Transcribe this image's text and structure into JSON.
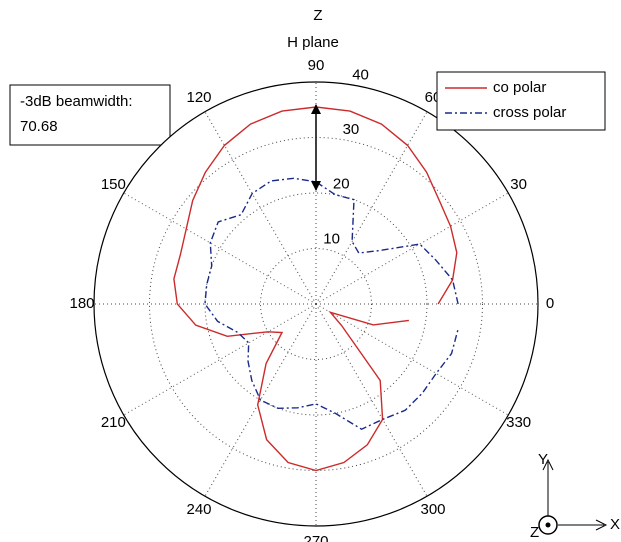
{
  "chart_data": {
    "type": "polar",
    "title": "H plane",
    "axis_label": "Z",
    "theta": [
      0,
      10,
      20,
      30,
      40,
      50,
      60,
      70,
      80,
      90,
      100,
      110,
      120,
      130,
      140,
      150,
      160,
      170,
      180,
      190,
      200,
      210,
      220,
      230,
      240,
      250,
      260,
      270,
      280,
      290,
      300,
      310,
      320,
      330,
      340,
      350
    ],
    "rlim": [
      0,
      40
    ],
    "rticks": [
      10,
      20,
      30,
      40
    ],
    "thetaticks": [
      0,
      30,
      60,
      90,
      120,
      150,
      180,
      210,
      240,
      270,
      300,
      330
    ],
    "grid": true,
    "legend": "upper right",
    "series": [
      {
        "name": "co polar",
        "color": "#cc2b2b",
        "style": "solid",
        "values": [
          22,
          25,
          27,
          28,
          29,
          31,
          33,
          34.5,
          35.3,
          35.5,
          35.3,
          34.5,
          33,
          31,
          29,
          27,
          26,
          26,
          25,
          22,
          17,
          10,
          8,
          14,
          21,
          26,
          29,
          30,
          29,
          27,
          24,
          18,
          6,
          3,
          11,
          17
        ]
      },
      {
        "name": "cross polar",
        "color": "#1a2a8a",
        "style": "dashdot",
        "values": [
          25.6,
          25,
          23,
          21.6,
          15,
          12,
          13,
          20,
          20,
          22,
          23,
          23.6,
          23,
          21,
          23,
          22,
          20,
          20,
          20,
          18,
          15,
          14,
          16,
          18,
          20,
          20,
          19,
          18,
          20,
          24,
          24,
          25,
          25,
          25,
          26,
          26
        ]
      }
    ],
    "annotation": [
      "-3dB beamwidth:",
      "70.68"
    ]
  },
  "axes_icon": {
    "y": "Y",
    "z": "Z",
    "x": "X"
  }
}
